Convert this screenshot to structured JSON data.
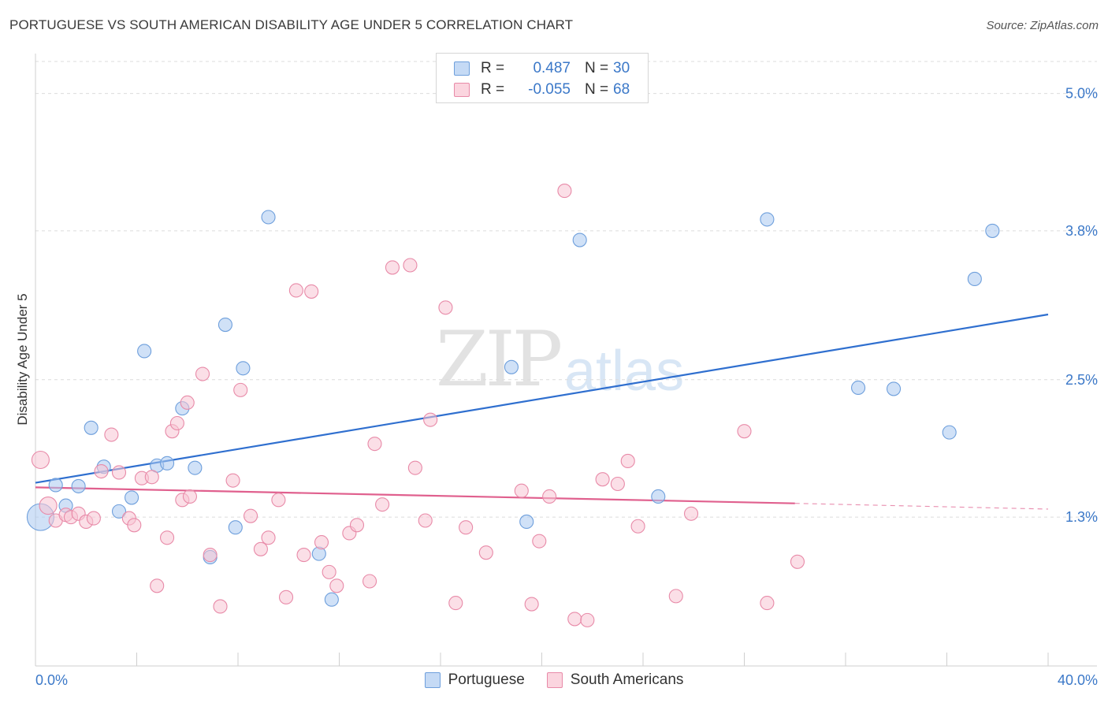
{
  "title": "PORTUGUESE VS SOUTH AMERICAN DISABILITY AGE UNDER 5 CORRELATION CHART",
  "source": "Source: ZipAtlas.com",
  "watermark": {
    "zip": "ZIP",
    "atlas": "atlas"
  },
  "legend": {
    "rows": [
      {
        "r_label": "R =",
        "r_value": "0.487",
        "n_label": "N =",
        "n_value": "30",
        "color": "#a9c8f0",
        "border": "#6e9fdc"
      },
      {
        "r_label": "R =",
        "r_value": "-0.055",
        "n_label": "N =",
        "n_value": "68",
        "color": "#f8c5d4",
        "border": "#e88aa8"
      }
    ]
  },
  "bottom_legend": [
    {
      "label": "Portuguese",
      "color": "#a9c8f0",
      "border": "#6e9fdc"
    },
    {
      "label": "South Americans",
      "color": "#f8c5d4",
      "border": "#e88aa8"
    }
  ],
  "chart_data": {
    "type": "scatter",
    "title": "PORTUGUESE VS SOUTH AMERICAN DISABILITY AGE UNDER 5 CORRELATION CHART",
    "xlabel": "",
    "ylabel": "Disability Age Under 5",
    "xlim": [
      0,
      40
    ],
    "ylim": [
      0,
      5.3
    ],
    "x_tick_labels": [
      "0.0%",
      "40.0%"
    ],
    "y_ticks": [
      1.3,
      2.5,
      3.8,
      5.0
    ],
    "y_tick_labels": [
      "1.3%",
      "2.5%",
      "3.8%",
      "5.0%"
    ],
    "grid": true,
    "series": [
      {
        "name": "Portuguese",
        "color": "#6e9fdc",
        "fill": "#a9c8f0",
        "trend": {
          "x": [
            0,
            40
          ],
          "y": [
            1.6,
            3.07
          ],
          "color": "#2f6fcf"
        },
        "points": [
          [
            0.2,
            1.3
          ],
          [
            0.8,
            1.58
          ],
          [
            1.2,
            1.4
          ],
          [
            1.7,
            1.57
          ],
          [
            2.2,
            2.08
          ],
          [
            2.7,
            1.74
          ],
          [
            3.3,
            1.35
          ],
          [
            3.8,
            1.47
          ],
          [
            4.3,
            2.75
          ],
          [
            4.8,
            1.75
          ],
          [
            5.2,
            1.77
          ],
          [
            5.8,
            2.25
          ],
          [
            6.3,
            1.73
          ],
          [
            6.9,
            0.95
          ],
          [
            7.5,
            2.98
          ],
          [
            7.9,
            1.21
          ],
          [
            8.2,
            2.6
          ],
          [
            9.2,
            3.92
          ],
          [
            11.2,
            0.98
          ],
          [
            11.7,
            0.58
          ],
          [
            18.8,
            2.61
          ],
          [
            19.4,
            1.26
          ],
          [
            21.5,
            3.72
          ],
          [
            24.6,
            1.48
          ],
          [
            28.9,
            3.9
          ],
          [
            32.5,
            2.43
          ],
          [
            33.9,
            2.42
          ],
          [
            36.1,
            2.04
          ],
          [
            37.1,
            3.38
          ],
          [
            37.8,
            3.8
          ]
        ]
      },
      {
        "name": "South Americans",
        "color": "#e88aa8",
        "fill": "#f8c5d4",
        "trend": {
          "x": [
            0,
            30
          ],
          "y": [
            1.56,
            1.42
          ],
          "x_dash": [
            30,
            40
          ],
          "y_dash": [
            1.42,
            1.37
          ],
          "color": "#e0608e"
        },
        "points": [
          [
            0.2,
            1.8
          ],
          [
            0.5,
            1.4
          ],
          [
            0.8,
            1.27
          ],
          [
            1.2,
            1.32
          ],
          [
            1.4,
            1.3
          ],
          [
            1.7,
            1.33
          ],
          [
            2.0,
            1.26
          ],
          [
            2.3,
            1.29
          ],
          [
            2.6,
            1.7
          ],
          [
            3.0,
            2.02
          ],
          [
            3.3,
            1.69
          ],
          [
            3.7,
            1.29
          ],
          [
            3.9,
            1.23
          ],
          [
            4.2,
            1.64
          ],
          [
            4.6,
            1.65
          ],
          [
            4.8,
            0.7
          ],
          [
            5.2,
            1.12
          ],
          [
            5.4,
            2.05
          ],
          [
            5.6,
            2.12
          ],
          [
            5.8,
            1.45
          ],
          [
            6.0,
            2.3
          ],
          [
            6.1,
            1.48
          ],
          [
            6.6,
            2.55
          ],
          [
            6.9,
            0.97
          ],
          [
            7.3,
            0.52
          ],
          [
            7.8,
            1.62
          ],
          [
            8.1,
            2.41
          ],
          [
            8.5,
            1.31
          ],
          [
            8.9,
            1.02
          ],
          [
            9.2,
            1.12
          ],
          [
            9.6,
            1.45
          ],
          [
            9.9,
            0.6
          ],
          [
            10.3,
            3.28
          ],
          [
            10.6,
            0.97
          ],
          [
            10.9,
            3.27
          ],
          [
            11.3,
            1.08
          ],
          [
            11.6,
            0.82
          ],
          [
            11.9,
            0.7
          ],
          [
            12.4,
            1.16
          ],
          [
            12.7,
            1.23
          ],
          [
            13.2,
            0.74
          ],
          [
            13.4,
            1.94
          ],
          [
            13.7,
            1.41
          ],
          [
            14.1,
            3.48
          ],
          [
            14.8,
            3.5
          ],
          [
            15.0,
            1.73
          ],
          [
            15.6,
            2.15
          ],
          [
            15.4,
            1.27
          ],
          [
            16.2,
            3.13
          ],
          [
            16.6,
            0.55
          ],
          [
            17.0,
            1.21
          ],
          [
            17.8,
            0.99
          ],
          [
            19.2,
            1.53
          ],
          [
            19.6,
            0.54
          ],
          [
            19.9,
            1.09
          ],
          [
            20.3,
            1.48
          ],
          [
            20.9,
            4.15
          ],
          [
            21.3,
            0.41
          ],
          [
            21.8,
            0.4
          ],
          [
            22.4,
            1.63
          ],
          [
            23.0,
            1.59
          ],
          [
            23.4,
            1.79
          ],
          [
            23.8,
            1.22
          ],
          [
            25.3,
            0.61
          ],
          [
            25.9,
            1.33
          ],
          [
            28.0,
            2.05
          ],
          [
            28.9,
            0.55
          ],
          [
            30.1,
            0.91
          ]
        ]
      }
    ]
  }
}
